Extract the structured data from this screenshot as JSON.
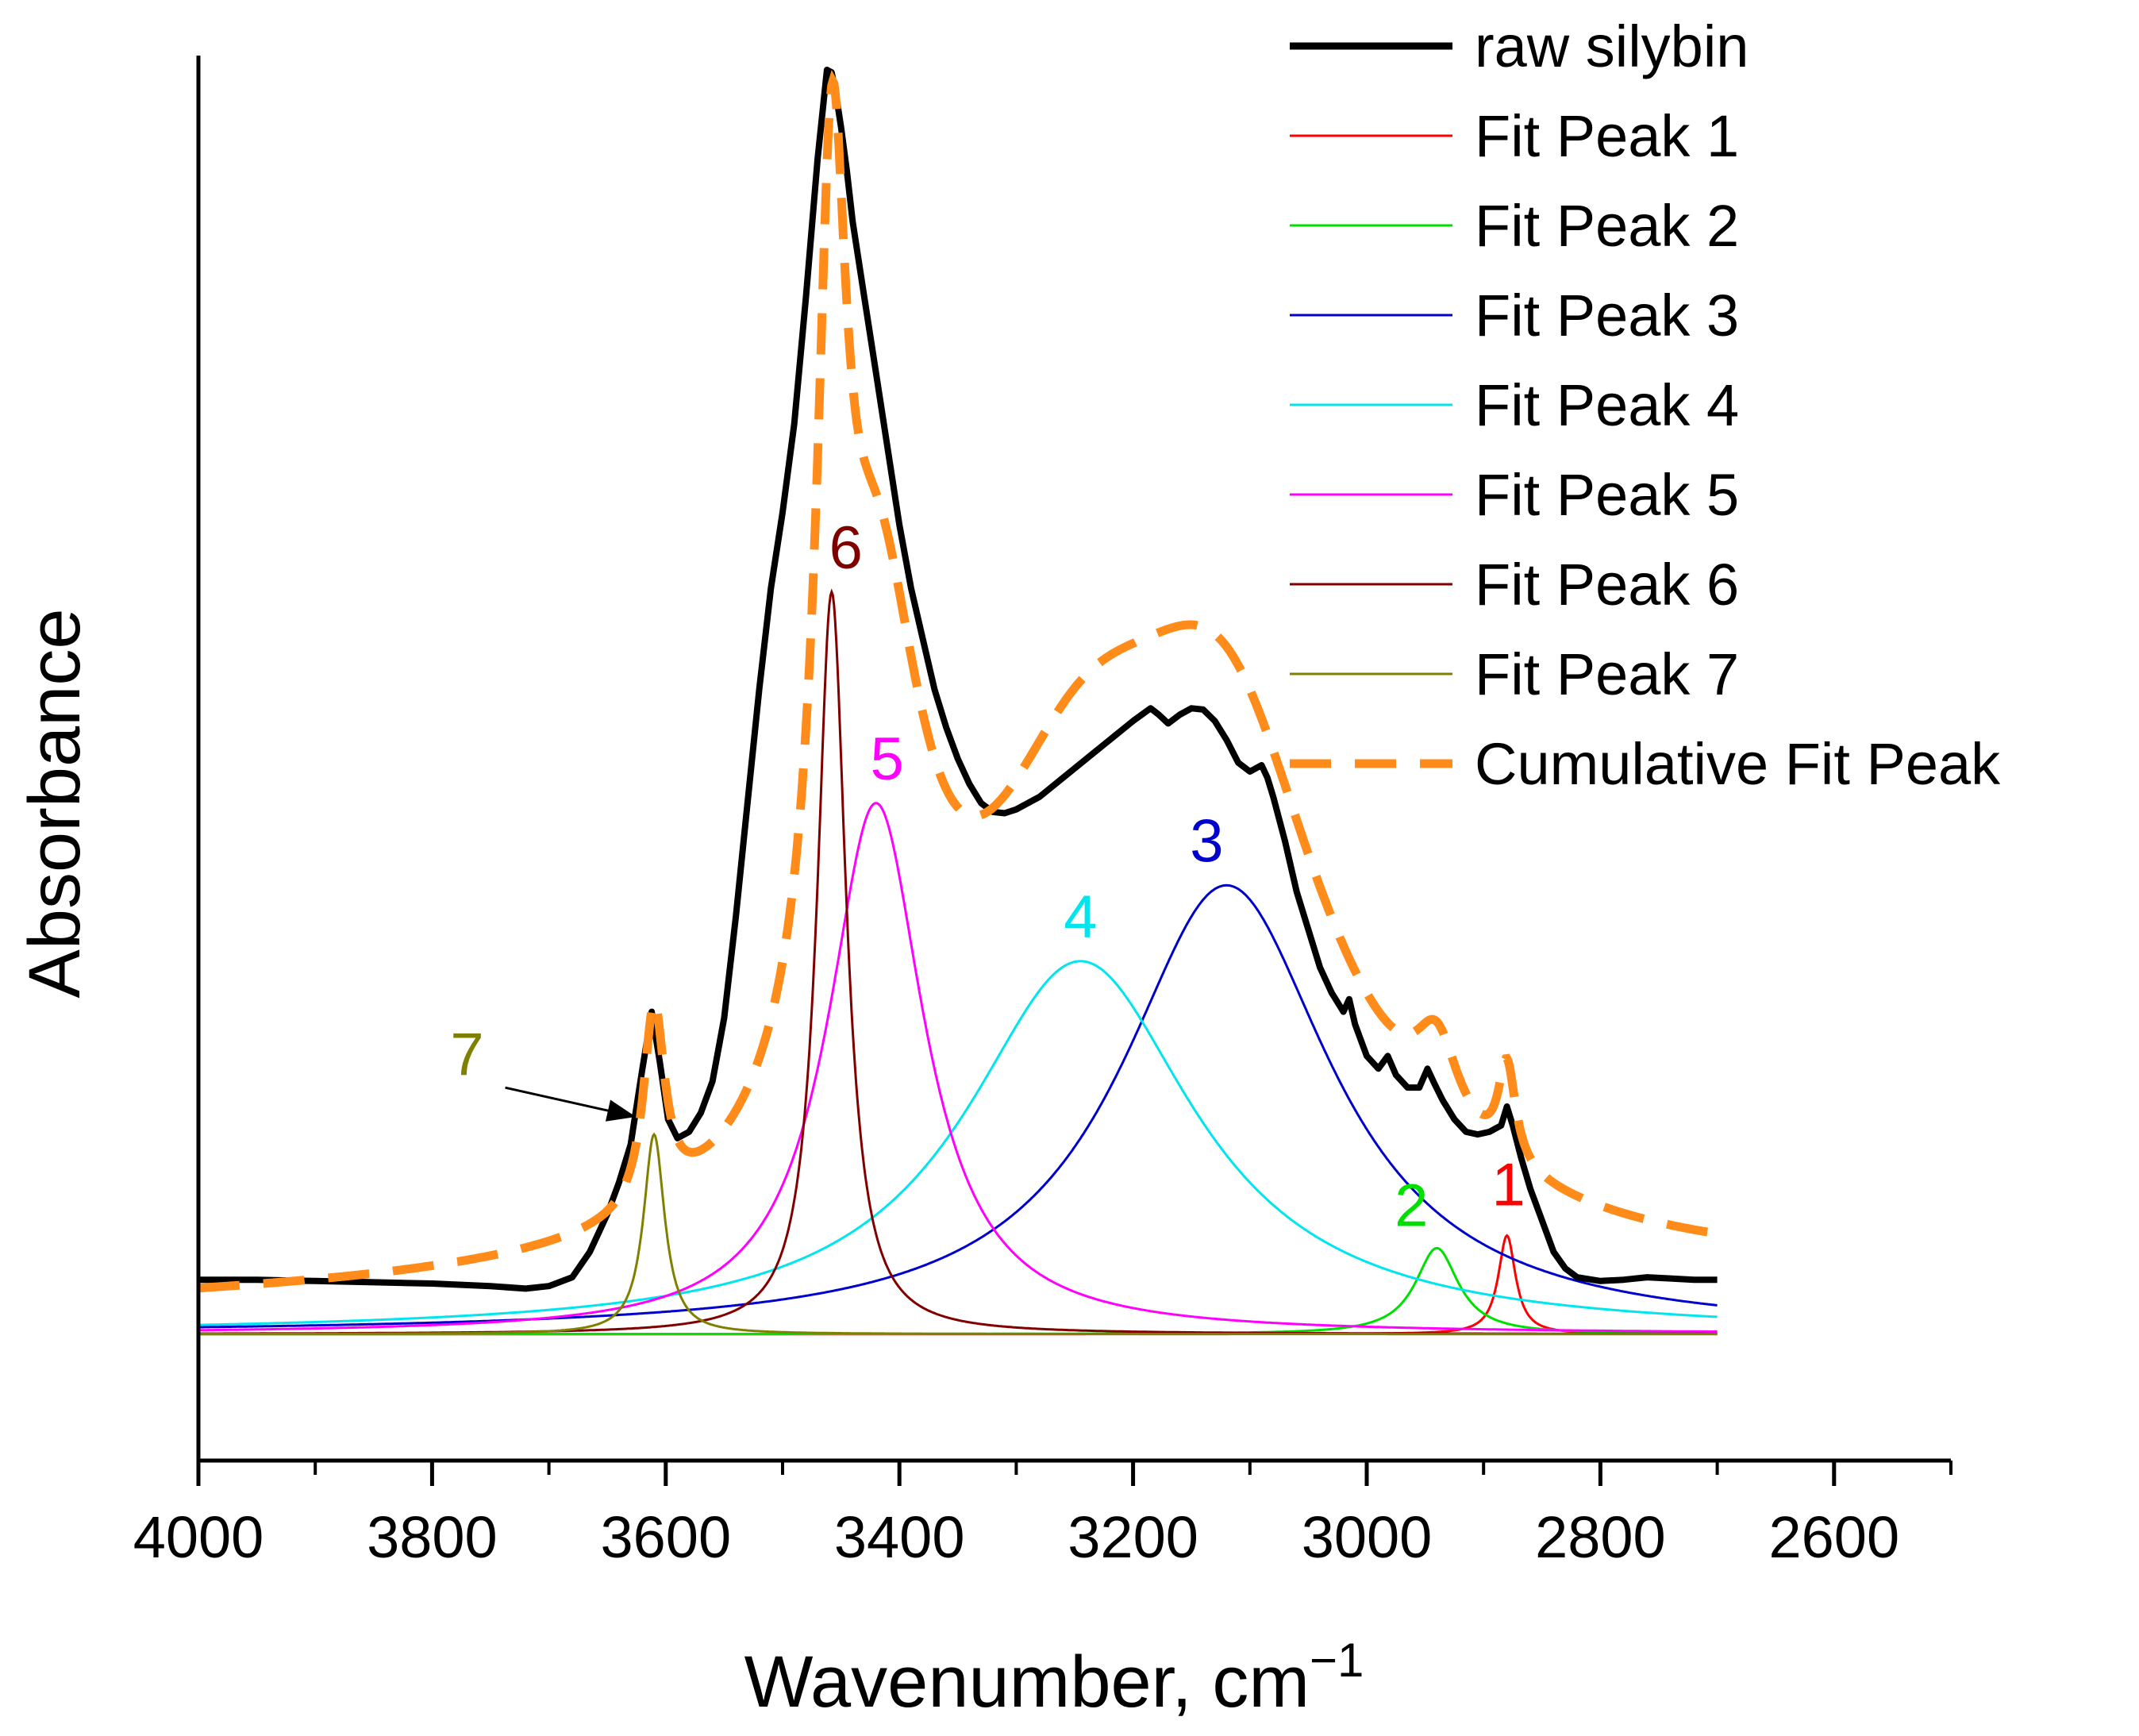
{
  "chart_data": {
    "type": "line",
    "title": "",
    "xlabel": "Wavenumber, cm",
    "xlabel_superscript": "−1",
    "ylabel": "Absorbance",
    "xlim": [
      4000,
      2500
    ],
    "ylim": [
      -0.1,
      1.0
    ],
    "x_ticks": [
      4000,
      3800,
      3600,
      3400,
      3200,
      3000,
      2800,
      2600
    ],
    "x_tick_labels": [
      "4000",
      "3800",
      "3600",
      "3400",
      "3200",
      "3000",
      "2800",
      "2600"
    ],
    "x_minor_ticks": [
      3900,
      3700,
      3500,
      3300,
      3100,
      2900,
      2700,
      2500
    ],
    "legend_position": "top-right",
    "series": [
      {
        "name": "raw silybin",
        "color": "#000000",
        "style": "solid-thick",
        "x": [
          4000,
          3950,
          3900,
          3850,
          3800,
          3750,
          3720,
          3700,
          3680,
          3665,
          3650,
          3640,
          3630,
          3620,
          3612,
          3605,
          3598,
          3590,
          3580,
          3570,
          3560,
          3550,
          3540,
          3530,
          3520,
          3510,
          3500,
          3490,
          3480,
          3470,
          3462,
          3458,
          3455,
          3450,
          3445,
          3440,
          3430,
          3420,
          3410,
          3400,
          3390,
          3380,
          3370,
          3360,
          3350,
          3340,
          3330,
          3320,
          3310,
          3300,
          3280,
          3260,
          3240,
          3220,
          3200,
          3185,
          3178,
          3170,
          3160,
          3150,
          3140,
          3130,
          3120,
          3110,
          3100,
          3090,
          3085,
          3080,
          3070,
          3060,
          3050,
          3040,
          3030,
          3020,
          3015,
          3010,
          3000,
          2990,
          2982,
          2975,
          2965,
          2955,
          2948,
          2942,
          2935,
          2925,
          2915,
          2905,
          2895,
          2885,
          2880,
          2875,
          2868,
          2860,
          2850,
          2840,
          2830,
          2820,
          2800,
          2780,
          2760,
          2740,
          2720,
          2700
        ],
        "values": [
          0.043,
          0.043,
          0.042,
          0.041,
          0.04,
          0.038,
          0.036,
          0.038,
          0.045,
          0.065,
          0.095,
          0.12,
          0.15,
          0.21,
          0.255,
          0.215,
          0.17,
          0.155,
          0.16,
          0.175,
          0.2,
          0.25,
          0.33,
          0.42,
          0.51,
          0.59,
          0.65,
          0.72,
          0.82,
          0.93,
          1.0,
          0.998,
          0.985,
          0.955,
          0.92,
          0.88,
          0.82,
          0.76,
          0.7,
          0.64,
          0.59,
          0.55,
          0.51,
          0.48,
          0.455,
          0.435,
          0.42,
          0.413,
          0.412,
          0.415,
          0.425,
          0.44,
          0.455,
          0.47,
          0.485,
          0.495,
          0.49,
          0.483,
          0.49,
          0.495,
          0.494,
          0.485,
          0.47,
          0.452,
          0.445,
          0.45,
          0.44,
          0.425,
          0.39,
          0.35,
          0.32,
          0.29,
          0.27,
          0.255,
          0.265,
          0.245,
          0.22,
          0.21,
          0.22,
          0.205,
          0.195,
          0.195,
          0.21,
          0.198,
          0.185,
          0.17,
          0.16,
          0.158,
          0.16,
          0.165,
          0.18,
          0.165,
          0.14,
          0.115,
          0.09,
          0.065,
          0.052,
          0.045,
          0.042,
          0.043,
          0.045,
          0.044,
          0.043,
          0.043
        ]
      },
      {
        "name": "Fit Peak 1",
        "color": "#ff0000",
        "model": "lorentzian",
        "center": 2880,
        "height": 0.078,
        "fwhm": 18,
        "label": "1"
      },
      {
        "name": "Fit Peak 2",
        "color": "#00e000",
        "model": "lorentzian",
        "center": 2940,
        "height": 0.068,
        "fwhm": 45,
        "label": "2"
      },
      {
        "name": "Fit Peak 3",
        "color": "#0000cc",
        "model": "lorentzian",
        "center": 3120,
        "height": 0.355,
        "fwhm": 220,
        "label": "3"
      },
      {
        "name": "Fit Peak 4",
        "color": "#00e5ee",
        "model": "lorentzian",
        "center": 3245,
        "height": 0.295,
        "fwhm": 240,
        "label": "4"
      },
      {
        "name": "Fit Peak 5",
        "color": "#ff00ff",
        "model": "lorentzian",
        "center": 3420,
        "height": 0.42,
        "fwhm": 100,
        "label": "5"
      },
      {
        "name": "Fit Peak 6",
        "color": "#800000",
        "model": "lorentzian",
        "center": 3458,
        "height": 0.587,
        "fwhm": 30,
        "label": "6"
      },
      {
        "name": "Fit Peak 7",
        "color": "#808000",
        "model": "lorentzian",
        "center": 3610,
        "height": 0.158,
        "fwhm": 22,
        "label": "7"
      },
      {
        "name": "Cumulative Fit Peak",
        "color": "#ff8c1a",
        "style": "dashed-thick",
        "model": "sum_of_fit_peaks",
        "baseline_start": 0.02,
        "baseline_end": 0.04
      }
    ],
    "annotations": [
      {
        "text": "7",
        "color": "#808000",
        "arrow_to_x": 3612,
        "arrow_to_y": 0.175
      },
      {
        "text": "6",
        "color": "#800000"
      },
      {
        "text": "5",
        "color": "#ff00ff"
      },
      {
        "text": "4",
        "color": "#00e5ee"
      },
      {
        "text": "3",
        "color": "#0000cc"
      },
      {
        "text": "2",
        "color": "#00e000"
      },
      {
        "text": "1",
        "color": "#ff0000"
      }
    ]
  }
}
